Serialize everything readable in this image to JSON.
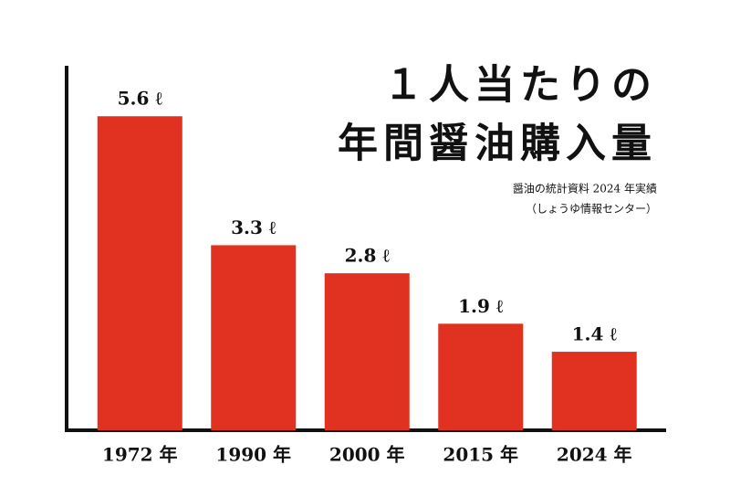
{
  "chart_data": {
    "type": "bar",
    "title": [
      "１人当たりの",
      "年間醤油購入量"
    ],
    "subtitle": [
      "醤油の統計資料 2024 年実績",
      "（しょうゆ情報センター）"
    ],
    "categories": [
      "1972 年",
      "1990 年",
      "2000 年",
      "2015 年",
      "2024 年"
    ],
    "values": [
      5.6,
      3.3,
      2.8,
      1.9,
      1.4
    ],
    "value_labels": [
      "5.6 ℓ",
      "3.3 ℓ",
      "2.8 ℓ",
      "1.9 ℓ",
      "1.4 ℓ"
    ],
    "color": "#e03121",
    "ylim": [
      0,
      6.5
    ]
  }
}
